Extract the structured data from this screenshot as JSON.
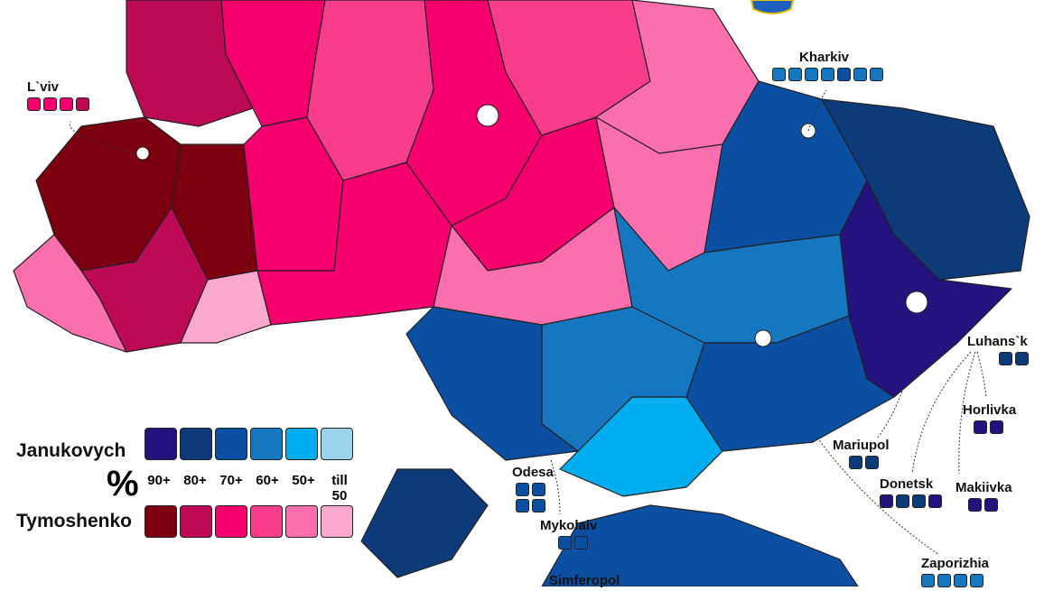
{
  "colors": {
    "janukovych": {
      "90+": "#24127e",
      "80+": "#0d3a78",
      "70+": "#0b4fa3",
      "60+": "#1776c0",
      "50+": "#00aeef",
      "till50": "#9ad3ea"
    },
    "tymoshenko": {
      "90+": "#7d0010",
      "80+": "#bc0a55",
      "70+": "#f5006e",
      "60+": "#f73d8b",
      "50+": "#fb6fae",
      "till50": "#fba8cf"
    }
  },
  "legend": {
    "candidate_1": "Janukovych",
    "candidate_2": "Tymoshenko",
    "percent_symbol": "%",
    "brackets": [
      "90+",
      "80+",
      "70+",
      "60+",
      "50+",
      "till 50"
    ],
    "bracket_keys": [
      "90+",
      "80+",
      "70+",
      "60+",
      "50+",
      "till50"
    ]
  },
  "cities": [
    {
      "name": "L`viv",
      "candidate": "tymoshenko",
      "districts": [
        "70+",
        "70+",
        "70+",
        "80+"
      ]
    },
    {
      "name": "Kharkiv",
      "candidate": "janukovych",
      "districts": [
        "60+",
        "60+",
        "60+",
        "60+",
        "70+",
        "60+",
        "60+"
      ]
    },
    {
      "name": "Luhans`k",
      "candidate": "janukovych",
      "districts": [
        "80+",
        "80+"
      ]
    },
    {
      "name": "Horlivka",
      "candidate": "janukovych",
      "districts": [
        "90+",
        "90+"
      ]
    },
    {
      "name": "Mariupol",
      "candidate": "janukovych",
      "districts": [
        "80+",
        "80+"
      ]
    },
    {
      "name": "Donetsk",
      "candidate": "janukovych",
      "districts": [
        "90+",
        "80+",
        "80+",
        "90+"
      ]
    },
    {
      "name": "Makiivka",
      "candidate": "janukovych",
      "districts": [
        "90+",
        "90+"
      ]
    },
    {
      "name": "Zaporizhia",
      "candidate": "janukovych",
      "districts": [
        "60+",
        "60+",
        "60+",
        "60+"
      ]
    },
    {
      "name": "Odesa",
      "candidate": "janukovych",
      "districts": [
        "70+",
        "70+",
        "70+",
        "70+"
      ]
    },
    {
      "name": "Mykolaiv",
      "candidate": "janukovych",
      "districts": [
        "70+",
        "70+"
      ]
    },
    {
      "name": "Simferopol",
      "candidate": "janukovych",
      "districts": []
    }
  ]
}
